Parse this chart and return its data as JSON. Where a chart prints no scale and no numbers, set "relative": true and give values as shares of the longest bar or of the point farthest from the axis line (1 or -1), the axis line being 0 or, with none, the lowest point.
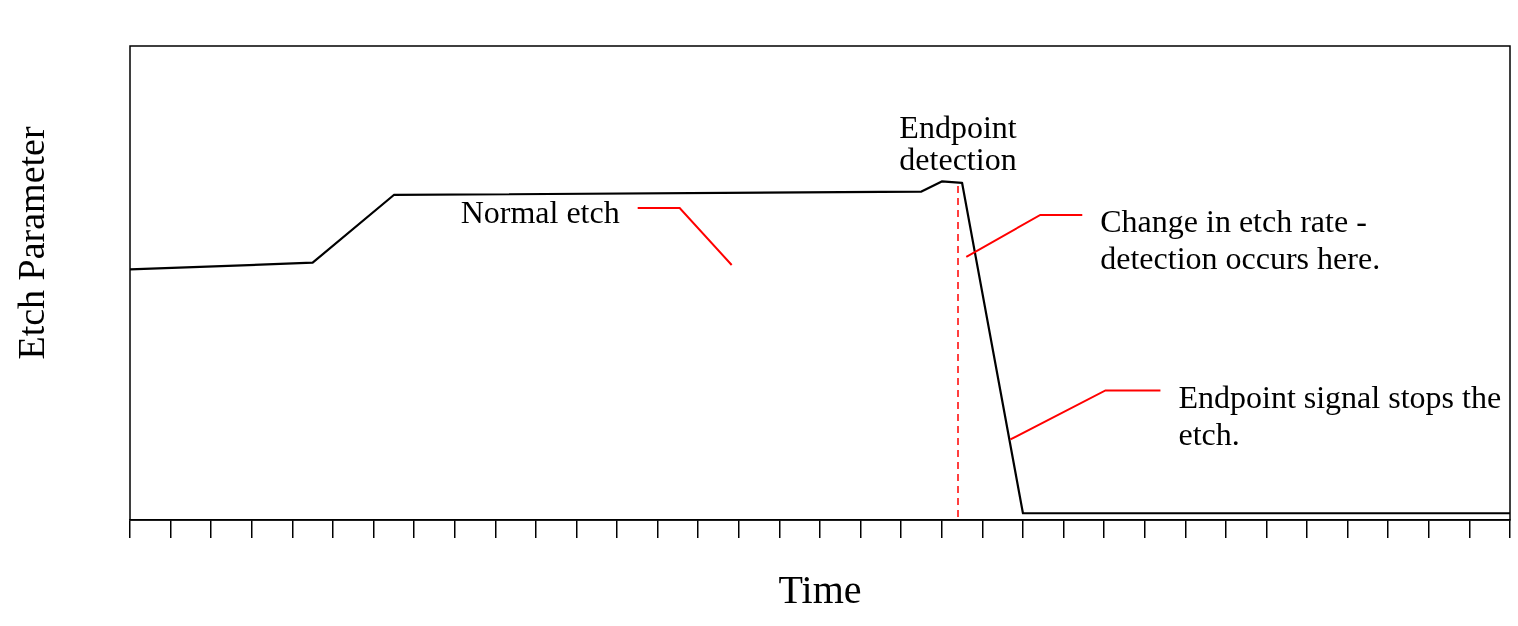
{
  "chart_data": {
    "type": "line",
    "relative": true,
    "xlabel": "Time",
    "ylabel": "Etch Parameter",
    "categories": [
      null,
      null,
      null,
      null,
      null,
      null,
      null,
      null,
      null,
      null,
      null,
      null,
      null,
      null,
      null,
      null,
      null,
      null,
      null,
      null,
      null,
      null,
      null,
      null,
      null,
      null,
      null,
      null,
      null,
      null,
      null,
      null,
      null,
      null,
      null,
      null,
      null,
      null,
      null,
      null,
      null,
      null,
      null,
      null,
      null,
      null,
      null,
      null,
      null,
      null,
      null,
      null,
      null,
      null,
      null,
      null,
      null,
      null,
      null,
      null,
      null,
      null,
      null,
      null,
      null,
      null,
      null,
      null,
      null
    ],
    "values": [
      0.74,
      null,
      null,
      null,
      null,
      null,
      null,
      null,
      null,
      0.76,
      null,
      null,
      null,
      0.96,
      null,
      null,
      null,
      null,
      null,
      null,
      null,
      null,
      null,
      null,
      null,
      null,
      null,
      null,
      null,
      null,
      null,
      null,
      null,
      null,
      null,
      null,
      null,
      null,
      null,
      0.97,
      1,
      0.996,
      null,
      null,
      0.02,
      null,
      null,
      null,
      null,
      null,
      null,
      null,
      null,
      null,
      null,
      null,
      null,
      null,
      null,
      null,
      null,
      null,
      null,
      null,
      null,
      null,
      null,
      null,
      0.02
    ],
    "color": "#000000",
    "marker": "none",
    "line_style": "solid",
    "grid": false,
    "legend": false,
    "annotations": [
      "Endpoint detection",
      "Normal etch",
      "Change in etch rate - detection occurs here.",
      "Endpoint signal stops the etch."
    ]
  }
}
